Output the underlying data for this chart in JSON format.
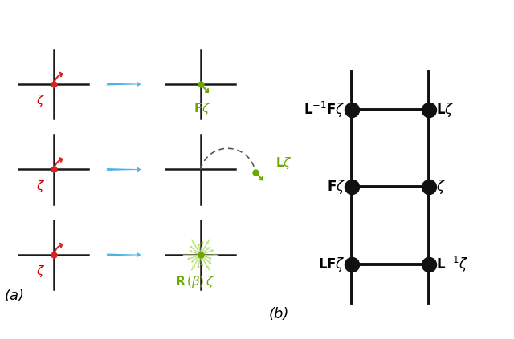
{
  "fig_width": 6.4,
  "fig_height": 4.23,
  "bg_color": "#ffffff",
  "panel_a": {
    "cross_color": "#1a1a1a",
    "dot_red_color": "#dd2222",
    "dot_green_color": "#6aaa00",
    "label_red_color": "#cc0000",
    "label_green_color": "#6aaa00",
    "starburst_color": "#b8e070"
  },
  "panel_b": {
    "node_color": "#111111",
    "line_color": "#111111"
  },
  "caption_a": "(a)",
  "caption_b": "(b)"
}
